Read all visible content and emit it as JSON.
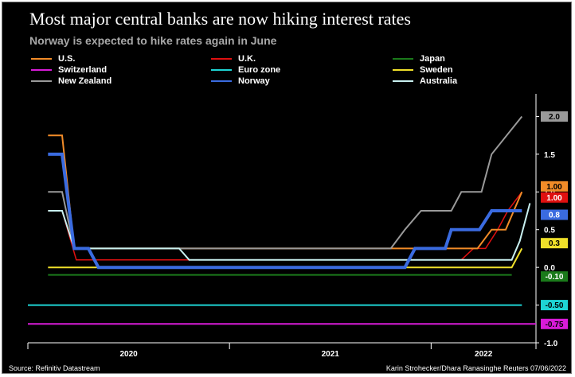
{
  "header": {
    "title": "Most major central banks are now hiking interest rates",
    "subtitle": "Norway is expected to hike rates again in June"
  },
  "footer": {
    "source": "Source: Refinitiv Datastream",
    "credit": "Karin Strohecker/Dhara Ranasinghe Reuters 07/06/2022"
  },
  "chart_data": {
    "type": "line",
    "title": "Most major central banks are now hiking interest rates",
    "subtitle": "Norway is expected to hike rates again in June",
    "xlabel": "",
    "ylabel": "",
    "ylim": [
      -1.0,
      2.3
    ],
    "xlim": [
      2019.75,
      2022.27
    ],
    "y_ticks": [
      {
        "value": 2.0,
        "label": "2.0"
      },
      {
        "value": 1.5,
        "label": "1.5"
      },
      {
        "value": 1.0,
        "label": "1.0"
      },
      {
        "value": 0.5,
        "label": "0.5"
      },
      {
        "value": 0.0,
        "label": "0.0"
      },
      {
        "value": -0.5,
        "label": "-0.5"
      },
      {
        "value": -1.0,
        "label": "-1.0"
      }
    ],
    "x_ticks": [
      {
        "label": "2020",
        "from": 2019.75,
        "to": 2020.75
      },
      {
        "label": "2021",
        "from": 2020.75,
        "to": 2021.75
      },
      {
        "label": "2022",
        "from": 2021.75,
        "to": 2022.27
      }
    ],
    "series": [
      {
        "name": "U.S.",
        "color": "#f28c28",
        "width": 2,
        "points": [
          [
            2019.85,
            1.75
          ],
          [
            2019.92,
            1.75
          ],
          [
            2019.98,
            0.25
          ],
          [
            2021.98,
            0.25
          ],
          [
            2022.05,
            0.5
          ],
          [
            2022.12,
            0.5
          ],
          [
            2022.2,
            1.0
          ]
        ],
        "end_label": "1.00",
        "end_value": 1.0
      },
      {
        "name": "U.K.",
        "color": "#e01010",
        "width": 1.5,
        "points": [
          [
            2019.85,
            0.75
          ],
          [
            2019.92,
            0.75
          ],
          [
            2019.99,
            0.1
          ],
          [
            2021.9,
            0.1
          ],
          [
            2021.96,
            0.25
          ],
          [
            2022.02,
            0.25
          ],
          [
            2022.08,
            0.5
          ],
          [
            2022.13,
            0.75
          ],
          [
            2022.2,
            1.0
          ]
        ],
        "end_label": "1.00",
        "end_value": 1.0
      },
      {
        "name": "Japan",
        "color": "#1a7a1a",
        "width": 2,
        "points": [
          [
            2019.85,
            -0.1
          ],
          [
            2022.15,
            -0.1
          ]
        ],
        "end_label": "-0.10",
        "end_value": -0.1
      },
      {
        "name": "Switzerland",
        "color": "#d81bd8",
        "width": 2,
        "points": [
          [
            2019.75,
            -0.75
          ],
          [
            2022.27,
            -0.75
          ]
        ],
        "end_label": "-0.75",
        "end_value": -0.75
      },
      {
        "name": "Euro zone",
        "color": "#1ed4d4",
        "width": 2,
        "points": [
          [
            2019.75,
            -0.5
          ],
          [
            2022.2,
            -0.5
          ]
        ],
        "end_label": "-0.50",
        "end_value": -0.5
      },
      {
        "name": "Sweden",
        "color": "#f0e02a",
        "width": 2,
        "points": [
          [
            2019.85,
            0.0
          ],
          [
            2022.15,
            0.0
          ],
          [
            2022.2,
            0.25
          ]
        ],
        "end_label": "0.3",
        "end_value": 0.3
      },
      {
        "name": "New Zealand",
        "color": "#9a9a9a",
        "width": 2,
        "points": [
          [
            2019.85,
            1.0
          ],
          [
            2019.92,
            1.0
          ],
          [
            2019.98,
            0.25
          ],
          [
            2021.55,
            0.25
          ],
          [
            2021.62,
            0.5
          ],
          [
            2021.7,
            0.75
          ],
          [
            2021.85,
            0.75
          ],
          [
            2021.9,
            1.0
          ],
          [
            2022.0,
            1.0
          ],
          [
            2022.05,
            1.5
          ],
          [
            2022.2,
            2.0
          ]
        ],
        "end_label": "2.0",
        "end_value": 2.0
      },
      {
        "name": "Norway",
        "color": "#3a6be0",
        "width": 4,
        "points": [
          [
            2019.85,
            1.5
          ],
          [
            2019.92,
            1.5
          ],
          [
            2019.98,
            0.25
          ],
          [
            2020.05,
            0.25
          ],
          [
            2020.1,
            0.0
          ],
          [
            2021.62,
            0.0
          ],
          [
            2021.67,
            0.25
          ],
          [
            2021.82,
            0.25
          ],
          [
            2021.85,
            0.5
          ],
          [
            2021.99,
            0.5
          ],
          [
            2022.05,
            0.75
          ],
          [
            2022.2,
            0.75
          ]
        ],
        "end_label": "0.8",
        "end_value": 0.75
      },
      {
        "name": "Australia",
        "color": "#c8f0f0",
        "width": 2,
        "points": [
          [
            2019.85,
            0.75
          ],
          [
            2019.92,
            0.75
          ],
          [
            2019.98,
            0.25
          ],
          [
            2020.5,
            0.25
          ],
          [
            2020.55,
            0.1
          ],
          [
            2022.15,
            0.1
          ],
          [
            2022.19,
            0.35
          ],
          [
            2022.24,
            0.85
          ]
        ],
        "end_label": "",
        "end_value": null
      }
    ]
  }
}
